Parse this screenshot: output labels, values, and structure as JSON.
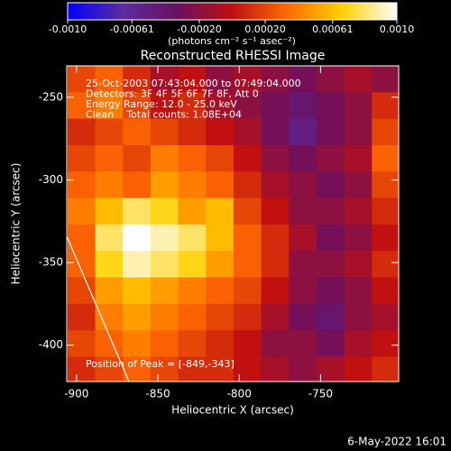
{
  "chart_data": {
    "type": "heatmap",
    "title": "Reconstructed RHESSI Image",
    "xlabel": "Heliocentric X (arcsec)",
    "ylabel": "Heliocentric Y (arcsec)",
    "xlim": [
      -906,
      -702
    ],
    "ylim": [
      -422,
      -231
    ],
    "xticks": [
      -900,
      -850,
      -800,
      -750
    ],
    "yticks": [
      -400,
      -350,
      -300,
      -250
    ],
    "x": [
      -897,
      -880,
      -863,
      -846,
      -829,
      -812,
      -795,
      -778,
      -761,
      -744,
      -727,
      -710
    ],
    "y": [
      -239,
      -255,
      -271,
      -287,
      -303,
      -319,
      -335,
      -351,
      -367,
      -383,
      -399,
      -415
    ],
    "z": [
      [
        0.0002,
        0.0003,
        0.0001,
        -0.0001,
        0,
        -0.0002,
        -0.0001,
        -0.0002,
        -0.0003,
        -0.0002,
        -0.0001,
        -0.0002
      ],
      [
        0.0003,
        0.0004,
        0.0002,
        0,
        0.0001,
        -0.0001,
        -0.0002,
        -0.0003,
        -0.0004,
        -0.0003,
        -0.0002,
        0.0001
      ],
      [
        0.0001,
        0.0002,
        0.0003,
        0.0002,
        0.0001,
        0,
        -0.0001,
        -0.0003,
        -0.0005,
        -0.0003,
        -0.0002,
        0.0002
      ],
      [
        0.0002,
        0.0003,
        0.0002,
        0.0004,
        0.0003,
        0.0002,
        0,
        -0.0002,
        -0.0003,
        -0.0002,
        -0.0001,
        0.0003
      ],
      [
        0.0003,
        0.0004,
        0.0003,
        0.0005,
        0.0004,
        0.0003,
        0.0001,
        -0.0001,
        -0.0002,
        -0.0003,
        -0.0002,
        0.0002
      ],
      [
        0.0004,
        0.0006,
        0.0008,
        0.0007,
        0.0005,
        0.0006,
        0.0002,
        0,
        -0.0002,
        -0.0002,
        -0.0001,
        0.0001
      ],
      [
        0.0003,
        0.0008,
        0.001,
        0.0009,
        0.0008,
        0.0006,
        0.0003,
        0.0001,
        -0.0001,
        -0.0003,
        -0.0002,
        0
      ],
      [
        0.0003,
        0.0007,
        0.0009,
        0.0008,
        0.0007,
        0.0005,
        0.0003,
        0.0001,
        -0.0002,
        -0.0002,
        -0.0001,
        0.0001
      ],
      [
        0.0002,
        0.0005,
        0.0006,
        0.0005,
        0.0004,
        0.0003,
        0.0002,
        0,
        -0.0002,
        -0.0003,
        -0.0002,
        0
      ],
      [
        0.0001,
        0.0004,
        0.0005,
        0.0004,
        0.0003,
        0.0002,
        0.0001,
        -0.0001,
        -0.0003,
        -0.0004,
        -0.0002,
        -0.0001
      ],
      [
        0.0002,
        0.0003,
        0.0004,
        0.0003,
        0.0002,
        0.0001,
        0,
        -0.0002,
        -0.0002,
        -0.0003,
        -0.0001,
        0
      ],
      [
        0.0001,
        0.0002,
        0.0003,
        0.0002,
        0.0001,
        0.0001,
        0,
        -0.0001,
        -0.0002,
        -0.0001,
        0,
        0.0001
      ]
    ],
    "zlim": [
      -0.001,
      0.001
    ],
    "zticks": [
      {
        "value": -0.001,
        "label": "-0.0010"
      },
      {
        "value": -0.00061,
        "label": "-0.00061"
      },
      {
        "value": -0.0002,
        "label": "-0.00020"
      },
      {
        "value": 0.0002,
        "label": "0.00020"
      },
      {
        "value": 0.00061,
        "label": "0.00061"
      },
      {
        "value": 0.001,
        "label": "0.0010"
      }
    ],
    "zlabel": "(photons cm⁻² s⁻¹ asec⁻²)",
    "colorscale": [
      "#0000ff",
      "#5a2ca0",
      "#6a1060",
      "#c01010",
      "#ff6a00",
      "#ffd000",
      "#ffffff"
    ],
    "annotations": [
      "25-Oct-2003 07:43:04.000 to 07:49:04.000",
      "Detectors: 3F 4F 5F 6F 7F 8F, Att 0",
      "Energy Range: 12.0 - 25.0 keV",
      "Clean    Total counts: 1.08E+04"
    ],
    "peak_label": "Position of Peak = [-849,-343]",
    "footer": "6-May-2022 16:01"
  }
}
